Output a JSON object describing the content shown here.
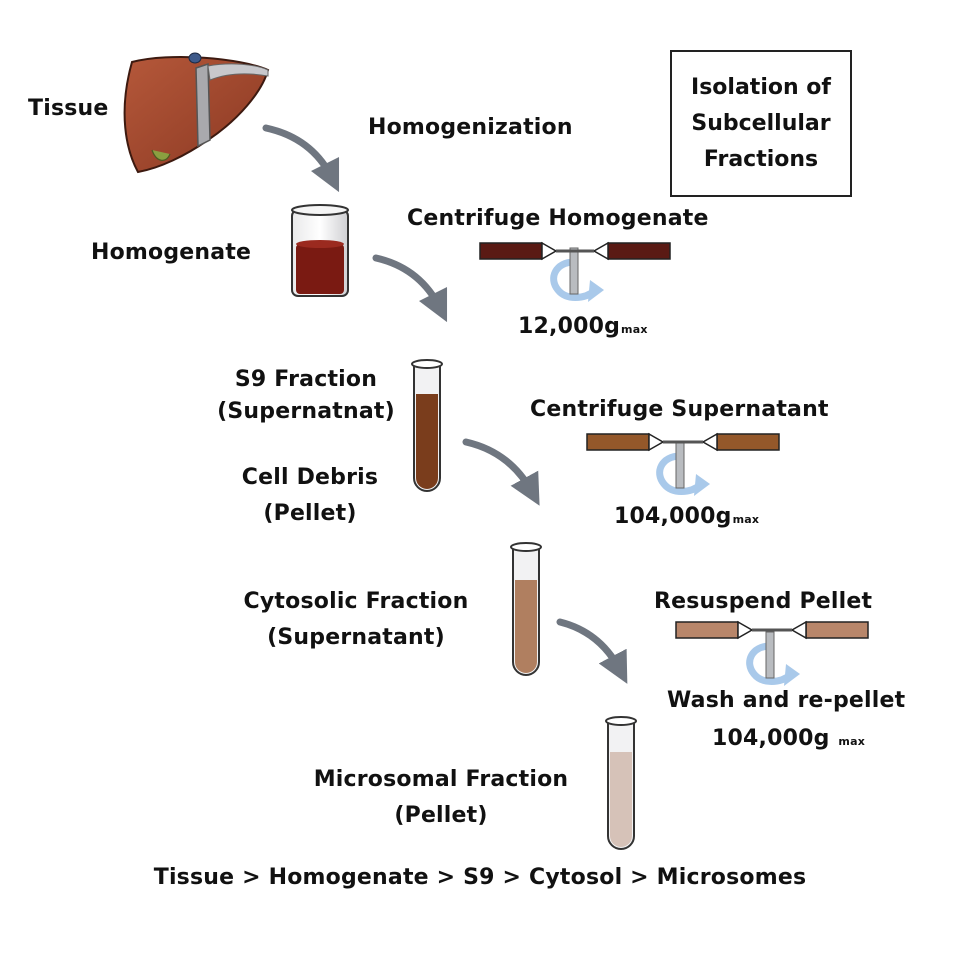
{
  "title": {
    "line1": "Isolation of",
    "line2": "Subcellular",
    "line3": "Fractions"
  },
  "labels": {
    "tissue": "Tissue",
    "homogenization": "Homogenization",
    "homogenate": "Homogenate",
    "s9_line1": "S9 Fraction",
    "s9_line2": "(Supernatnat)",
    "debris_line1": "Cell Debris",
    "debris_line2": "(Pellet)",
    "cytosolic_line1": "Cytosolic Fraction",
    "cytosolic_line2": "(Supernatant)",
    "microsomal_line1": "Microsomal Fraction",
    "microsomal_line2": "(Pellet)"
  },
  "steps": {
    "step1_label": "Centrifuge Homogenate",
    "step1_speed": "12,000g",
    "step1_unit": "max",
    "step2_label": "Centrifuge Supernatant",
    "step2_speed": "104,000g",
    "step2_unit": "max",
    "step3_label": "Resuspend Pellet",
    "step3_label2": "Wash and re-pellet",
    "step3_speed": "104,000g",
    "step3_unit": "max"
  },
  "summary": "Tissue > Homogenate > S9 > Cytosol > Microsomes",
  "colors": {
    "liver": "#a0492c",
    "homogenate": "#7a1a12",
    "s9": "#7a3d1c",
    "cytosol": "#b07f60",
    "microsomes": "#d6c2b8",
    "arrow": "#6f7680",
    "rotation": "#a9c9ea",
    "rotor1": "#5a1a14",
    "rotor2": "#94582a",
    "rotor3": "#b8866a"
  }
}
